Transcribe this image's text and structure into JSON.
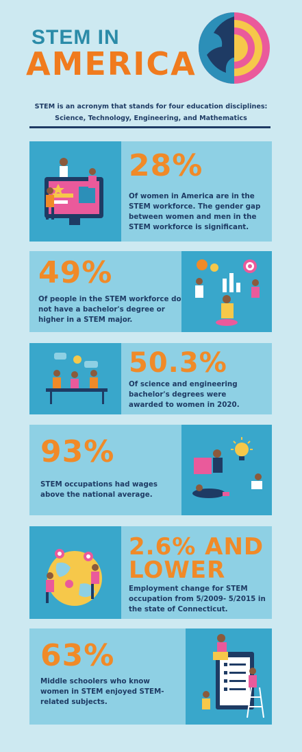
{
  "header": {
    "title_line1": "STEM IN",
    "title_line2": "AMERICA",
    "subtitle_line1": "STEM is an acronym that stands for four education disciplines:",
    "subtitle_line2": "Science, Technology, Engineering, and Mathematics"
  },
  "stats": [
    {
      "value": "28%",
      "description": "Of women in America are in the STEM workforce. The gender gap between women and men in the STEM workforce is significant."
    },
    {
      "value": "49%",
      "description": "Of people in the STEM workforce do not have a bachelor's degree or higher in a STEM major."
    },
    {
      "value": "50.3%",
      "description": "Of science and engineering bachelor's degrees were awarded to women in 2020."
    },
    {
      "value": "93%",
      "description": "STEM occupations had wages above the national average."
    },
    {
      "value_line1": "2.6% AND",
      "value_line2": "LOWER",
      "description": "Employment change for STEM occupation from 5/2009- 5/2015 in the state of Connecticut."
    },
    {
      "value": "63%",
      "description": "Middle schoolers who know women in STEM enjoyed STEM-related subjects."
    }
  ],
  "colors": {
    "background": "#cde9f1",
    "panel": "#8ed0e4",
    "illustration_panel": "#39a7cb",
    "stat_orange": "#f08a28",
    "text_navy": "#1e3b64"
  },
  "illustrations": [
    "computer-workers-illustration",
    "analytics-team-illustration",
    "meeting-table-illustration",
    "lightbulb-idea-illustration",
    "globe-location-pins-illustration",
    "checklist-ladder-illustration"
  ]
}
